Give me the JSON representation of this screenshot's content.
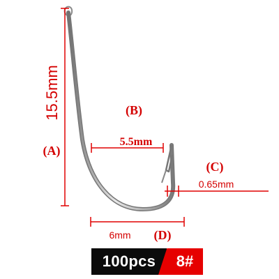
{
  "labels": {
    "a": "(A)",
    "b": "(B)",
    "c": "(C)",
    "d": "(D)"
  },
  "dimensions": {
    "length": "15.5mm",
    "gap": "5.5mm",
    "wire": "0.65mm",
    "width": "6mm"
  },
  "badge": {
    "quantity": "100pcs",
    "size": "8#"
  },
  "colors": {
    "dimension_line": "#e00000",
    "label_red": "#d40000",
    "hook_steel": "#9a9a9a",
    "badge_dark": "#0b0b0b",
    "badge_red": "#e60000"
  },
  "icons": {
    "hook": "fishing-hook-icon"
  }
}
